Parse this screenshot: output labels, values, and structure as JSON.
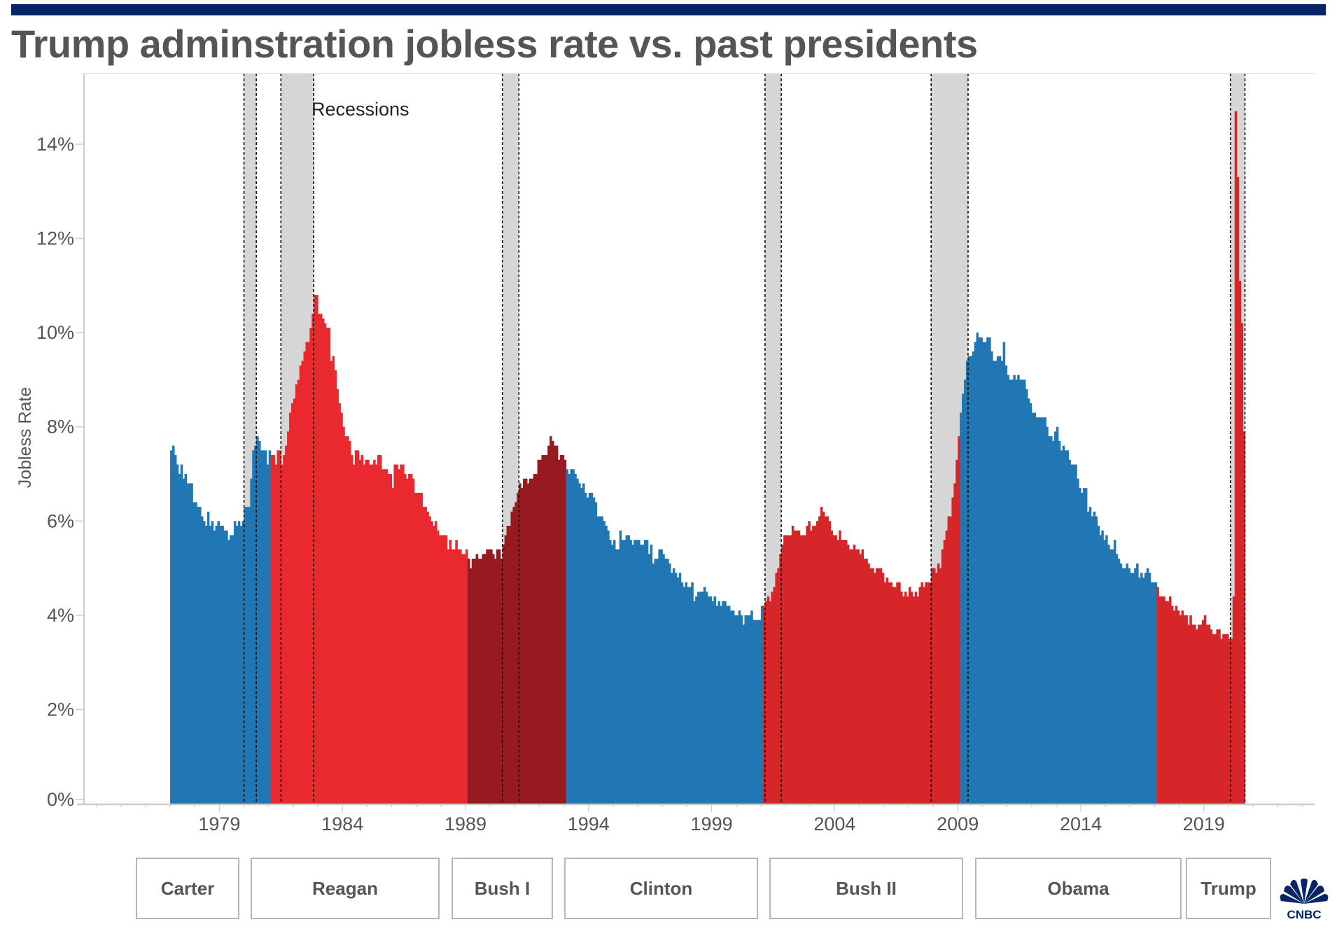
{
  "header": {
    "title": "Trump adminstration jobless rate vs. past presidents"
  },
  "brand": {
    "logo_text": "CNBC",
    "logo_color": "#062568"
  },
  "chart_data": {
    "type": "bar",
    "title": "Trump adminstration jobless rate vs. past presidents",
    "xlabel": "",
    "ylabel": "Jobless Rate",
    "ylim": [
      0,
      15.5
    ],
    "xlim": [
      1973.5,
      2023.5
    ],
    "grid": false,
    "y_ticks": [
      0,
      2,
      4,
      6,
      8,
      10,
      12,
      14
    ],
    "y_tick_labels": [
      "0%",
      "2%",
      "4%",
      "6%",
      "8%",
      "10%",
      "12%",
      "14%"
    ],
    "x_ticks": [
      1979,
      1984,
      1989,
      1994,
      1999,
      2004,
      2009,
      2014,
      2019
    ],
    "x_tick_labels": [
      "1979",
      "1984",
      "1989",
      "1994",
      "1999",
      "2004",
      "2009",
      "2014",
      "2019"
    ],
    "annotation": "Recessions",
    "start": {
      "year": 1977,
      "month": 1
    },
    "monthly_values_by_year": {
      "1977": [
        7.5,
        7.6,
        7.4,
        7.2,
        7.0,
        7.2,
        6.9,
        7.0,
        6.8,
        6.8,
        6.8,
        6.4
      ],
      "1978": [
        6.4,
        6.3,
        6.3,
        6.1,
        6.0,
        5.9,
        6.2,
        5.9,
        6.0,
        5.8,
        5.9,
        6.0
      ],
      "1979": [
        5.9,
        5.9,
        5.8,
        5.8,
        5.6,
        5.7,
        5.7,
        6.0,
        5.9,
        6.0,
        5.9,
        6.0
      ],
      "1980": [
        6.3,
        6.3,
        6.3,
        6.9,
        7.5,
        7.6,
        7.8,
        7.7,
        7.5,
        7.5,
        7.5,
        7.2
      ],
      "1981": [
        7.5,
        7.4,
        7.4,
        7.2,
        7.5,
        7.5,
        7.2,
        7.4,
        7.6,
        7.9,
        8.3,
        8.5
      ],
      "1982": [
        8.6,
        8.9,
        9.0,
        9.3,
        9.4,
        9.6,
        9.8,
        9.8,
        10.1,
        10.4,
        10.8,
        10.8
      ],
      "1983": [
        10.4,
        10.4,
        10.3,
        10.2,
        10.1,
        10.1,
        9.4,
        9.5,
        9.2,
        8.8,
        8.5,
        8.3
      ],
      "1984": [
        8.0,
        7.8,
        7.8,
        7.7,
        7.4,
        7.2,
        7.5,
        7.5,
        7.3,
        7.4,
        7.2,
        7.3
      ],
      "1985": [
        7.3,
        7.2,
        7.2,
        7.3,
        7.2,
        7.4,
        7.4,
        7.1,
        7.1,
        7.1,
        7.0,
        7.0
      ],
      "1986": [
        6.7,
        7.2,
        7.2,
        7.1,
        7.2,
        7.2,
        7.0,
        6.9,
        7.0,
        7.0,
        6.9,
        6.6
      ],
      "1987": [
        6.6,
        6.6,
        6.6,
        6.3,
        6.3,
        6.2,
        6.1,
        6.0,
        5.9,
        6.0,
        5.8,
        5.7
      ],
      "1988": [
        5.7,
        5.7,
        5.7,
        5.4,
        5.6,
        5.4,
        5.4,
        5.6,
        5.4,
        5.4,
        5.3,
        5.3
      ],
      "1989": [
        5.4,
        5.2,
        5.0,
        5.2,
        5.2,
        5.3,
        5.2,
        5.2,
        5.3,
        5.3,
        5.4,
        5.4
      ],
      "1990": [
        5.4,
        5.3,
        5.2,
        5.4,
        5.4,
        5.2,
        5.5,
        5.7,
        5.9,
        5.9,
        6.2,
        6.3
      ],
      "1991": [
        6.4,
        6.6,
        6.8,
        6.7,
        6.9,
        6.9,
        6.8,
        6.9,
        6.9,
        7.0,
        7.0,
        7.3
      ],
      "1992": [
        7.3,
        7.4,
        7.4,
        7.4,
        7.6,
        7.8,
        7.7,
        7.6,
        7.6,
        7.3,
        7.4,
        7.4
      ],
      "1993": [
        7.3,
        7.1,
        7.0,
        7.1,
        7.1,
        7.0,
        6.9,
        6.8,
        6.7,
        6.8,
        6.6,
        6.5
      ],
      "1994": [
        6.6,
        6.6,
        6.5,
        6.4,
        6.1,
        6.1,
        6.1,
        6.0,
        5.9,
        5.8,
        5.6,
        5.5
      ],
      "1995": [
        5.6,
        5.4,
        5.4,
        5.8,
        5.6,
        5.6,
        5.7,
        5.7,
        5.6,
        5.5,
        5.6,
        5.6
      ],
      "1996": [
        5.6,
        5.5,
        5.5,
        5.6,
        5.6,
        5.3,
        5.5,
        5.1,
        5.2,
        5.2,
        5.4,
        5.4
      ],
      "1997": [
        5.3,
        5.2,
        5.2,
        5.1,
        4.9,
        5.0,
        4.9,
        4.8,
        4.9,
        4.7,
        4.6,
        4.7
      ],
      "1998": [
        4.6,
        4.6,
        4.7,
        4.3,
        4.4,
        4.5,
        4.5,
        4.5,
        4.6,
        4.5,
        4.4,
        4.4
      ],
      "1999": [
        4.3,
        4.4,
        4.2,
        4.3,
        4.2,
        4.3,
        4.3,
        4.2,
        4.2,
        4.1,
        4.1,
        4.0
      ],
      "2000": [
        4.0,
        4.1,
        4.0,
        3.8,
        4.0,
        4.0,
        4.0,
        4.1,
        3.9,
        3.9,
        3.9,
        3.9
      ],
      "2001": [
        4.2,
        4.2,
        4.3,
        4.4,
        4.3,
        4.5,
        4.6,
        4.9,
        5.0,
        5.3,
        5.5,
        5.7
      ],
      "2002": [
        5.7,
        5.7,
        5.7,
        5.9,
        5.8,
        5.8,
        5.8,
        5.7,
        5.7,
        5.7,
        5.9,
        6.0
      ],
      "2003": [
        5.8,
        5.9,
        5.9,
        6.0,
        6.1,
        6.3,
        6.2,
        6.1,
        6.1,
        6.0,
        5.8,
        5.7
      ],
      "2004": [
        5.7,
        5.6,
        5.8,
        5.6,
        5.6,
        5.6,
        5.5,
        5.4,
        5.4,
        5.5,
        5.4,
        5.4
      ],
      "2005": [
        5.3,
        5.4,
        5.2,
        5.2,
        5.1,
        5.0,
        5.0,
        4.9,
        5.0,
        5.0,
        5.0,
        4.9
      ],
      "2006": [
        4.7,
        4.8,
        4.7,
        4.7,
        4.6,
        4.6,
        4.7,
        4.7,
        4.5,
        4.4,
        4.5,
        4.4
      ],
      "2007": [
        4.6,
        4.5,
        4.4,
        4.5,
        4.4,
        4.6,
        4.7,
        4.6,
        4.7,
        4.7,
        4.7,
        5.0
      ],
      "2008": [
        5.0,
        4.9,
        5.1,
        5.0,
        5.4,
        5.6,
        5.8,
        6.1,
        6.1,
        6.5,
        6.8,
        7.3
      ],
      "2009": [
        7.8,
        8.3,
        8.7,
        9.0,
        9.4,
        9.5,
        9.5,
        9.6,
        9.8,
        10.0,
        9.9,
        9.9
      ],
      "2010": [
        9.8,
        9.8,
        9.9,
        9.9,
        9.6,
        9.4,
        9.4,
        9.5,
        9.5,
        9.4,
        9.8,
        9.3
      ],
      "2011": [
        9.1,
        9.0,
        9.0,
        9.1,
        9.0,
        9.1,
        9.0,
        9.0,
        9.0,
        8.8,
        8.6,
        8.5
      ],
      "2012": [
        8.3,
        8.3,
        8.2,
        8.2,
        8.2,
        8.2,
        8.2,
        8.0,
        7.8,
        7.8,
        7.7,
        7.9
      ],
      "2013": [
        8.0,
        7.7,
        7.5,
        7.6,
        7.5,
        7.5,
        7.3,
        7.2,
        7.2,
        7.2,
        6.9,
        6.7
      ],
      "2014": [
        6.6,
        6.7,
        6.7,
        6.2,
        6.3,
        6.1,
        6.2,
        6.1,
        5.9,
        5.7,
        5.8,
        5.6
      ],
      "2015": [
        5.7,
        5.5,
        5.4,
        5.4,
        5.6,
        5.3,
        5.2,
        5.1,
        5.0,
        5.0,
        5.1,
        5.0
      ],
      "2016": [
        4.9,
        4.9,
        5.0,
        5.1,
        4.8,
        4.9,
        4.8,
        4.9,
        5.0,
        4.9,
        4.7,
        4.7
      ],
      "2017": [
        4.7,
        4.6,
        4.4,
        4.4,
        4.4,
        4.3,
        4.3,
        4.4,
        4.2,
        4.1,
        4.2,
        4.1
      ],
      "2018": [
        4.0,
        4.1,
        4.0,
        4.0,
        3.8,
        4.0,
        3.8,
        3.8,
        3.7,
        3.8,
        3.8,
        3.9
      ],
      "2019": [
        4.0,
        3.8,
        3.8,
        3.7,
        3.6,
        3.6,
        3.7,
        3.7,
        3.5,
        3.6,
        3.6,
        3.6
      ],
      "2020": [
        3.5,
        3.5,
        4.4,
        14.7,
        13.3,
        11.1,
        10.2,
        7.9
      ]
    },
    "presidencies": [
      {
        "name": "Carter",
        "party": "D",
        "start": 1977.0,
        "end": 1981.08,
        "color": "#2077b4"
      },
      {
        "name": "Reagan",
        "party": "R",
        "start": 1981.08,
        "end": 1989.08,
        "color": "#e8292e"
      },
      {
        "name": "Bush I",
        "party": "R",
        "start": 1989.08,
        "end": 1993.08,
        "color": "#961a1f"
      },
      {
        "name": "Clinton",
        "party": "D",
        "start": 1993.08,
        "end": 2001.08,
        "color": "#2077b4"
      },
      {
        "name": "Bush II",
        "party": "R",
        "start": 2001.08,
        "end": 2009.08,
        "color": "#d62629"
      },
      {
        "name": "Obama",
        "party": "D",
        "start": 2009.08,
        "end": 2017.08,
        "color": "#2077b4"
      },
      {
        "name": "Trump",
        "party": "R",
        "start": 2017.08,
        "end": 2020.67,
        "color": "#d62629"
      }
    ],
    "recessions": [
      {
        "start": 1980.0,
        "end": 1980.5
      },
      {
        "start": 1981.5,
        "end": 1982.83
      },
      {
        "start": 1990.5,
        "end": 1991.17
      },
      {
        "start": 2001.17,
        "end": 2001.83
      },
      {
        "start": 2007.92,
        "end": 2009.42
      },
      {
        "start": 2020.08,
        "end": 2020.67
      }
    ],
    "recession_color": "#d6d6d6"
  }
}
